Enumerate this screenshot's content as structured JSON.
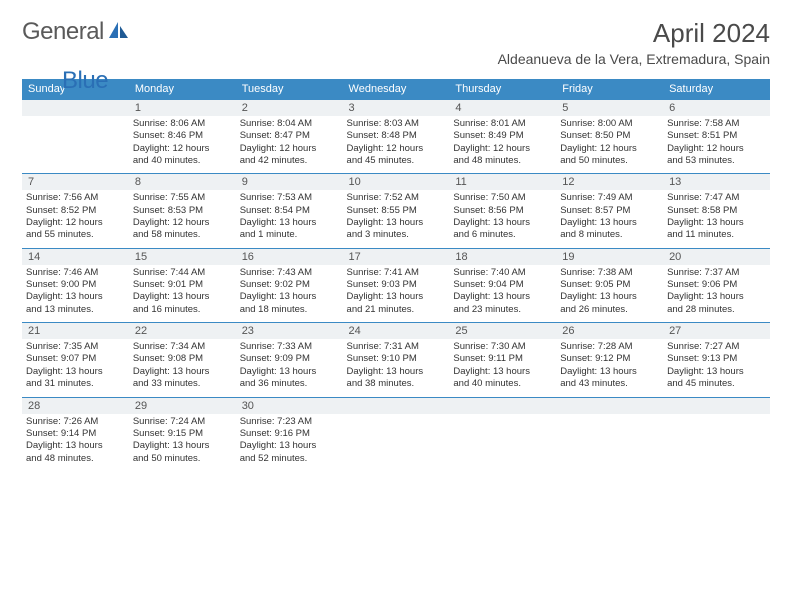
{
  "brand": {
    "part1": "General",
    "part2": "Blue"
  },
  "title": "April 2024",
  "location": "Aldeanueva de la Vera, Extremadura, Spain",
  "colors": {
    "header_bg": "#3b8ac4",
    "header_text": "#ffffff",
    "date_bg": "#eef1f3",
    "row_border": "#3b8ac4",
    "body_text": "#333333",
    "title_color": "#4a4a4a",
    "logo_gray": "#5a5a5a",
    "logo_blue": "#2a6fb5"
  },
  "day_headers": [
    "Sunday",
    "Monday",
    "Tuesday",
    "Wednesday",
    "Thursday",
    "Friday",
    "Saturday"
  ],
  "weeks": [
    [
      {
        "date": ""
      },
      {
        "date": "1",
        "sunrise": "Sunrise: 8:06 AM",
        "sunset": "Sunset: 8:46 PM",
        "day1": "Daylight: 12 hours",
        "day2": "and 40 minutes."
      },
      {
        "date": "2",
        "sunrise": "Sunrise: 8:04 AM",
        "sunset": "Sunset: 8:47 PM",
        "day1": "Daylight: 12 hours",
        "day2": "and 42 minutes."
      },
      {
        "date": "3",
        "sunrise": "Sunrise: 8:03 AM",
        "sunset": "Sunset: 8:48 PM",
        "day1": "Daylight: 12 hours",
        "day2": "and 45 minutes."
      },
      {
        "date": "4",
        "sunrise": "Sunrise: 8:01 AM",
        "sunset": "Sunset: 8:49 PM",
        "day1": "Daylight: 12 hours",
        "day2": "and 48 minutes."
      },
      {
        "date": "5",
        "sunrise": "Sunrise: 8:00 AM",
        "sunset": "Sunset: 8:50 PM",
        "day1": "Daylight: 12 hours",
        "day2": "and 50 minutes."
      },
      {
        "date": "6",
        "sunrise": "Sunrise: 7:58 AM",
        "sunset": "Sunset: 8:51 PM",
        "day1": "Daylight: 12 hours",
        "day2": "and 53 minutes."
      }
    ],
    [
      {
        "date": "7",
        "sunrise": "Sunrise: 7:56 AM",
        "sunset": "Sunset: 8:52 PM",
        "day1": "Daylight: 12 hours",
        "day2": "and 55 minutes."
      },
      {
        "date": "8",
        "sunrise": "Sunrise: 7:55 AM",
        "sunset": "Sunset: 8:53 PM",
        "day1": "Daylight: 12 hours",
        "day2": "and 58 minutes."
      },
      {
        "date": "9",
        "sunrise": "Sunrise: 7:53 AM",
        "sunset": "Sunset: 8:54 PM",
        "day1": "Daylight: 13 hours",
        "day2": "and 1 minute."
      },
      {
        "date": "10",
        "sunrise": "Sunrise: 7:52 AM",
        "sunset": "Sunset: 8:55 PM",
        "day1": "Daylight: 13 hours",
        "day2": "and 3 minutes."
      },
      {
        "date": "11",
        "sunrise": "Sunrise: 7:50 AM",
        "sunset": "Sunset: 8:56 PM",
        "day1": "Daylight: 13 hours",
        "day2": "and 6 minutes."
      },
      {
        "date": "12",
        "sunrise": "Sunrise: 7:49 AM",
        "sunset": "Sunset: 8:57 PM",
        "day1": "Daylight: 13 hours",
        "day2": "and 8 minutes."
      },
      {
        "date": "13",
        "sunrise": "Sunrise: 7:47 AM",
        "sunset": "Sunset: 8:58 PM",
        "day1": "Daylight: 13 hours",
        "day2": "and 11 minutes."
      }
    ],
    [
      {
        "date": "14",
        "sunrise": "Sunrise: 7:46 AM",
        "sunset": "Sunset: 9:00 PM",
        "day1": "Daylight: 13 hours",
        "day2": "and 13 minutes."
      },
      {
        "date": "15",
        "sunrise": "Sunrise: 7:44 AM",
        "sunset": "Sunset: 9:01 PM",
        "day1": "Daylight: 13 hours",
        "day2": "and 16 minutes."
      },
      {
        "date": "16",
        "sunrise": "Sunrise: 7:43 AM",
        "sunset": "Sunset: 9:02 PM",
        "day1": "Daylight: 13 hours",
        "day2": "and 18 minutes."
      },
      {
        "date": "17",
        "sunrise": "Sunrise: 7:41 AM",
        "sunset": "Sunset: 9:03 PM",
        "day1": "Daylight: 13 hours",
        "day2": "and 21 minutes."
      },
      {
        "date": "18",
        "sunrise": "Sunrise: 7:40 AM",
        "sunset": "Sunset: 9:04 PM",
        "day1": "Daylight: 13 hours",
        "day2": "and 23 minutes."
      },
      {
        "date": "19",
        "sunrise": "Sunrise: 7:38 AM",
        "sunset": "Sunset: 9:05 PM",
        "day1": "Daylight: 13 hours",
        "day2": "and 26 minutes."
      },
      {
        "date": "20",
        "sunrise": "Sunrise: 7:37 AM",
        "sunset": "Sunset: 9:06 PM",
        "day1": "Daylight: 13 hours",
        "day2": "and 28 minutes."
      }
    ],
    [
      {
        "date": "21",
        "sunrise": "Sunrise: 7:35 AM",
        "sunset": "Sunset: 9:07 PM",
        "day1": "Daylight: 13 hours",
        "day2": "and 31 minutes."
      },
      {
        "date": "22",
        "sunrise": "Sunrise: 7:34 AM",
        "sunset": "Sunset: 9:08 PM",
        "day1": "Daylight: 13 hours",
        "day2": "and 33 minutes."
      },
      {
        "date": "23",
        "sunrise": "Sunrise: 7:33 AM",
        "sunset": "Sunset: 9:09 PM",
        "day1": "Daylight: 13 hours",
        "day2": "and 36 minutes."
      },
      {
        "date": "24",
        "sunrise": "Sunrise: 7:31 AM",
        "sunset": "Sunset: 9:10 PM",
        "day1": "Daylight: 13 hours",
        "day2": "and 38 minutes."
      },
      {
        "date": "25",
        "sunrise": "Sunrise: 7:30 AM",
        "sunset": "Sunset: 9:11 PM",
        "day1": "Daylight: 13 hours",
        "day2": "and 40 minutes."
      },
      {
        "date": "26",
        "sunrise": "Sunrise: 7:28 AM",
        "sunset": "Sunset: 9:12 PM",
        "day1": "Daylight: 13 hours",
        "day2": "and 43 minutes."
      },
      {
        "date": "27",
        "sunrise": "Sunrise: 7:27 AM",
        "sunset": "Sunset: 9:13 PM",
        "day1": "Daylight: 13 hours",
        "day2": "and 45 minutes."
      }
    ],
    [
      {
        "date": "28",
        "sunrise": "Sunrise: 7:26 AM",
        "sunset": "Sunset: 9:14 PM",
        "day1": "Daylight: 13 hours",
        "day2": "and 48 minutes."
      },
      {
        "date": "29",
        "sunrise": "Sunrise: 7:24 AM",
        "sunset": "Sunset: 9:15 PM",
        "day1": "Daylight: 13 hours",
        "day2": "and 50 minutes."
      },
      {
        "date": "30",
        "sunrise": "Sunrise: 7:23 AM",
        "sunset": "Sunset: 9:16 PM",
        "day1": "Daylight: 13 hours",
        "day2": "and 52 minutes."
      },
      {
        "date": ""
      },
      {
        "date": ""
      },
      {
        "date": ""
      },
      {
        "date": ""
      }
    ]
  ]
}
